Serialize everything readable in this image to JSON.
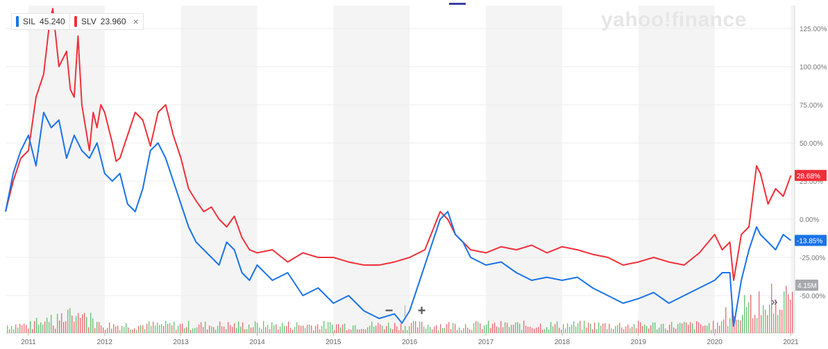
{
  "legend": [
    {
      "symbol": "SIL",
      "value": "45.240",
      "color": "#1a73e8"
    },
    {
      "symbol": "SLV",
      "value": "23.960",
      "color": "#f0303a",
      "close": "×"
    }
  ],
  "watermark": "yahoo!finance",
  "zoom": {
    "minus": "−",
    "plus": "+"
  },
  "more": "»",
  "chart_data": {
    "type": "line",
    "x_tick_labels": [
      "2011",
      "2012",
      "2013",
      "2014",
      "2015",
      "2016",
      "2017",
      "2018",
      "2019",
      "2020",
      "2021"
    ],
    "y_tick_labels": [
      "125.00%",
      "100.00%",
      "75.00%",
      "50.00%",
      "25.00%",
      "0.00%",
      "-25.00%",
      "-50.00%"
    ],
    "y_ticks": [
      125,
      100,
      75,
      50,
      25,
      0,
      -25,
      -50
    ],
    "ylim": [
      -70,
      140
    ],
    "xlim": [
      2010.7,
      2021.05
    ],
    "y_unit": "% change",
    "end_labels": [
      {
        "series": "SLV",
        "text": "28.68%",
        "value": 28.68,
        "color": "#f0303a"
      },
      {
        "series": "SIL",
        "text": "-13.85%",
        "value": -13.85,
        "color": "#1a73e8"
      }
    ],
    "volume_label": "4.15M",
    "series": [
      {
        "name": "SLV",
        "color": "#f0303a",
        "x": [
          2010.7,
          2010.8,
          2010.9,
          2011.0,
          2011.1,
          2011.2,
          2011.28,
          2011.32,
          2011.4,
          2011.5,
          2011.55,
          2011.6,
          2011.65,
          2011.7,
          2011.75,
          2011.8,
          2011.85,
          2011.9,
          2011.95,
          2012.0,
          2012.1,
          2012.15,
          2012.2,
          2012.3,
          2012.4,
          2012.5,
          2012.6,
          2012.7,
          2012.8,
          2012.9,
          2013.0,
          2013.1,
          2013.2,
          2013.3,
          2013.4,
          2013.5,
          2013.6,
          2013.7,
          2013.8,
          2013.9,
          2014.0,
          2014.2,
          2014.4,
          2014.6,
          2014.8,
          2015.0,
          2015.2,
          2015.4,
          2015.6,
          2015.8,
          2016.0,
          2016.2,
          2016.4,
          2016.5,
          2016.6,
          2016.7,
          2016.8,
          2017.0,
          2017.2,
          2017.4,
          2017.6,
          2017.8,
          2018.0,
          2018.2,
          2018.4,
          2018.6,
          2018.8,
          2019.0,
          2019.2,
          2019.4,
          2019.6,
          2019.8,
          2020.0,
          2020.1,
          2020.2,
          2020.25,
          2020.35,
          2020.45,
          2020.55,
          2020.6,
          2020.7,
          2020.8,
          2020.9,
          2021.0
        ],
        "y": [
          5,
          25,
          40,
          45,
          80,
          95,
          130,
          138,
          100,
          110,
          85,
          80,
          120,
          75,
          60,
          45,
          70,
          60,
          75,
          70,
          50,
          38,
          40,
          55,
          70,
          65,
          48,
          70,
          75,
          55,
          40,
          20,
          12,
          5,
          8,
          0,
          -5,
          2,
          -12,
          -20,
          -22,
          -20,
          -28,
          -22,
          -25,
          -25,
          -28,
          -30,
          -30,
          -28,
          -25,
          -20,
          5,
          0,
          -10,
          -15,
          -20,
          -22,
          -18,
          -20,
          -17,
          -22,
          -18,
          -20,
          -23,
          -25,
          -30,
          -28,
          -25,
          -28,
          -30,
          -22,
          -10,
          -20,
          -15,
          -40,
          -10,
          -5,
          35,
          30,
          10,
          20,
          15,
          28.68
        ]
      },
      {
        "name": "SIL",
        "color": "#1a73e8",
        "x": [
          2010.7,
          2010.8,
          2010.9,
          2011.0,
          2011.1,
          2011.2,
          2011.3,
          2011.4,
          2011.5,
          2011.6,
          2011.7,
          2011.8,
          2011.9,
          2012.0,
          2012.1,
          2012.2,
          2012.3,
          2012.4,
          2012.5,
          2012.6,
          2012.7,
          2012.8,
          2012.9,
          2013.0,
          2013.1,
          2013.2,
          2013.3,
          2013.4,
          2013.5,
          2013.6,
          2013.7,
          2013.8,
          2013.9,
          2014.0,
          2014.2,
          2014.4,
          2014.6,
          2014.8,
          2015.0,
          2015.2,
          2015.4,
          2015.6,
          2015.8,
          2015.9,
          2016.0,
          2016.2,
          2016.4,
          2016.5,
          2016.6,
          2016.7,
          2016.8,
          2017.0,
          2017.2,
          2017.4,
          2017.6,
          2017.8,
          2018.0,
          2018.2,
          2018.4,
          2018.6,
          2018.8,
          2019.0,
          2019.2,
          2019.4,
          2019.6,
          2019.8,
          2020.0,
          2020.1,
          2020.2,
          2020.25,
          2020.35,
          2020.45,
          2020.55,
          2020.6,
          2020.7,
          2020.8,
          2020.9,
          2021.0
        ],
        "y": [
          5,
          30,
          45,
          55,
          35,
          70,
          60,
          65,
          40,
          55,
          45,
          40,
          50,
          30,
          25,
          30,
          10,
          5,
          20,
          45,
          50,
          40,
          25,
          10,
          -5,
          -15,
          -20,
          -25,
          -30,
          -15,
          -20,
          -35,
          -40,
          -30,
          -40,
          -35,
          -50,
          -45,
          -55,
          -50,
          -60,
          -65,
          -62,
          -68,
          -60,
          -30,
          0,
          5,
          -10,
          -15,
          -25,
          -30,
          -28,
          -35,
          -40,
          -38,
          -40,
          -38,
          -45,
          -50,
          -55,
          -52,
          -48,
          -55,
          -50,
          -45,
          -40,
          -35,
          -35,
          -70,
          -40,
          -20,
          -5,
          -10,
          -15,
          -20,
          -10,
          -13.85
        ]
      }
    ]
  }
}
